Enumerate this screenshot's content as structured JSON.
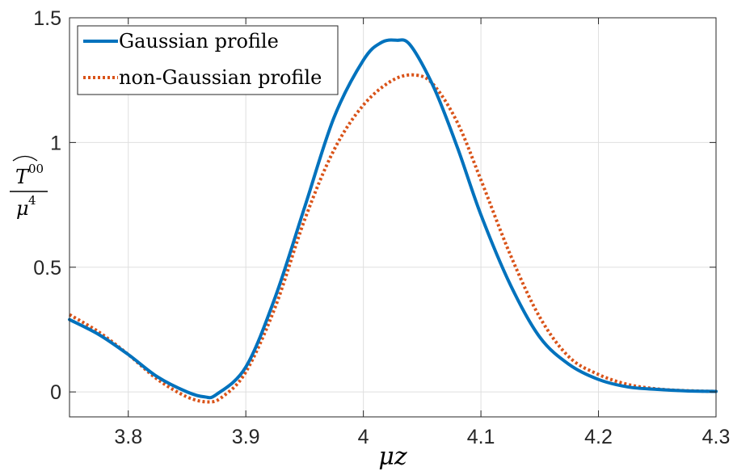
{
  "chart_data": {
    "type": "line",
    "title": "",
    "xlabel": "μz",
    "ylabel": {
      "numerator": "T",
      "superscript": "00",
      "denominator": "μ",
      "denominator_power": "4"
    },
    "xlim": [
      3.75,
      4.3
    ],
    "ylim": [
      -0.1,
      1.5
    ],
    "xticks": [
      3.8,
      3.9,
      4.0,
      4.1,
      4.2,
      4.3
    ],
    "xtick_labels": [
      "3.8",
      "3.9",
      "4",
      "4.1",
      "4.2",
      "4.3"
    ],
    "yticks": [
      0,
      0.5,
      1,
      1.5
    ],
    "ytick_labels": [
      "0",
      "0.5",
      "1",
      "1.5"
    ],
    "grid": true,
    "legend_position": "top-left",
    "series": [
      {
        "name": "Gaussian profile",
        "color": "#0072BD",
        "style": "solid",
        "x": [
          3.75,
          3.775,
          3.8,
          3.825,
          3.85,
          3.865,
          3.875,
          3.9,
          3.925,
          3.95,
          3.975,
          4.0,
          4.015,
          4.028,
          4.04,
          4.06,
          4.08,
          4.1,
          4.125,
          4.15,
          4.175,
          4.2,
          4.225,
          4.25,
          4.275,
          4.3
        ],
        "y": [
          0.29,
          0.23,
          0.15,
          0.06,
          0.0,
          -0.02,
          -0.01,
          0.1,
          0.38,
          0.74,
          1.1,
          1.33,
          1.4,
          1.41,
          1.39,
          1.22,
          0.98,
          0.71,
          0.43,
          0.22,
          0.11,
          0.05,
          0.02,
          0.01,
          0.004,
          0.002
        ]
      },
      {
        "name": "non-Gaussian profile",
        "color": "#D95319",
        "style": "dotted",
        "x": [
          3.75,
          3.775,
          3.8,
          3.825,
          3.85,
          3.868,
          3.88,
          3.9,
          3.925,
          3.95,
          3.975,
          4.0,
          4.025,
          4.045,
          4.06,
          4.08,
          4.1,
          4.125,
          4.15,
          4.175,
          4.2,
          4.225,
          4.25,
          4.275,
          4.3
        ],
        "y": [
          0.31,
          0.24,
          0.15,
          0.05,
          -0.02,
          -0.04,
          -0.02,
          0.08,
          0.34,
          0.69,
          0.97,
          1.15,
          1.25,
          1.27,
          1.23,
          1.08,
          0.85,
          0.55,
          0.3,
          0.14,
          0.07,
          0.03,
          0.012,
          0.005,
          0.002
        ]
      }
    ]
  }
}
